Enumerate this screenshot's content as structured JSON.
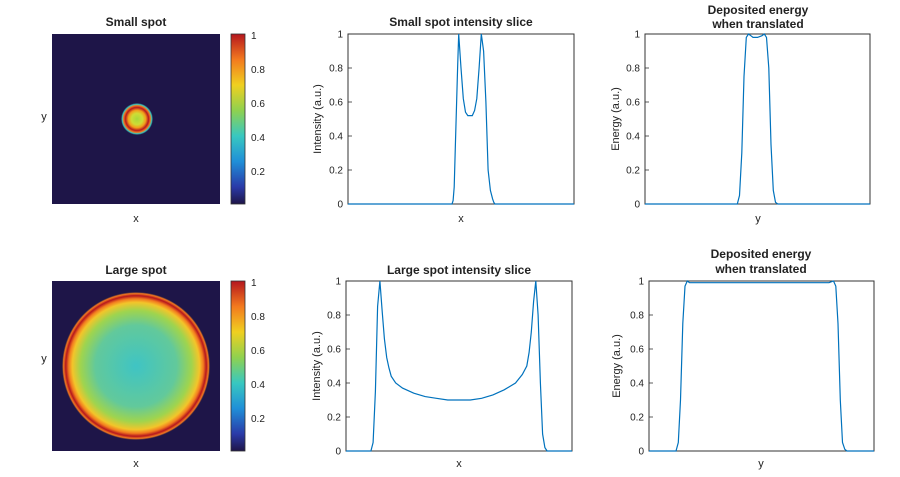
{
  "chart_data": [
    {
      "id": "small-spot-image",
      "type": "heatmap",
      "title": "Small spot",
      "xlabel": "x",
      "ylabel": "y",
      "spot_outer_radius": 0.1,
      "colorbar": {
        "ticks": [
          "0.2",
          "0.4",
          "0.6",
          "0.8",
          "1"
        ],
        "range": [
          0,
          1
        ],
        "colormap": "jet"
      },
      "background_color": "#1e1548"
    },
    {
      "id": "small-spot-slice",
      "type": "line",
      "title": "Small spot intensity slice",
      "xlabel": "x",
      "ylabel": "Intensity (a.u.)",
      "ylim": [
        0,
        1
      ],
      "yticks": [
        "0",
        "0.2",
        "0.4",
        "0.6",
        "0.8",
        "1"
      ],
      "xlim": [
        0,
        1
      ],
      "x": [
        0,
        0.46,
        0.465,
        0.47,
        0.475,
        0.485,
        0.49,
        0.5,
        0.51,
        0.52,
        0.53,
        0.54,
        0.55,
        0.56,
        0.57,
        0.58,
        0.59,
        0.6,
        0.61,
        0.615,
        0.62,
        0.63,
        0.64,
        0.645,
        0.65,
        0.66,
        1
      ],
      "y": [
        0,
        0,
        0.02,
        0.1,
        0.35,
        0.8,
        1.0,
        0.8,
        0.62,
        0.54,
        0.52,
        0.52,
        0.52,
        0.55,
        0.62,
        0.8,
        1.0,
        0.9,
        0.6,
        0.4,
        0.2,
        0.08,
        0.03,
        0.01,
        0,
        0,
        0
      ],
      "color": "#0072BD"
    },
    {
      "id": "small-spot-energy",
      "type": "line",
      "title": "Deposited energy",
      "subtitle": "when translated",
      "xlabel": "y",
      "ylabel": "Energy (a.u.)",
      "ylim": [
        0,
        1
      ],
      "yticks": [
        "0",
        "0.2",
        "0.4",
        "0.6",
        "0.8",
        "1"
      ],
      "xlim": [
        0,
        1
      ],
      "x": [
        0,
        0.41,
        0.42,
        0.43,
        0.44,
        0.45,
        0.46,
        0.47,
        0.48,
        0.5,
        0.52,
        0.53,
        0.54,
        0.55,
        0.56,
        0.57,
        0.58,
        0.59,
        1
      ],
      "y": [
        0,
        0,
        0.05,
        0.3,
        0.75,
        0.98,
        1.0,
        0.99,
        0.98,
        0.98,
        0.99,
        1.0,
        0.98,
        0.8,
        0.35,
        0.08,
        0.01,
        0,
        0
      ],
      "color": "#0072BD"
    },
    {
      "id": "large-spot-image",
      "type": "heatmap",
      "title": "Large spot",
      "xlabel": "x",
      "ylabel": "y",
      "spot_outer_radius": 0.44,
      "colorbar": {
        "ticks": [
          "0.2",
          "0.4",
          "0.6",
          "0.8",
          "1"
        ],
        "range": [
          0,
          1
        ],
        "colormap": "jet"
      },
      "background_color": "#1e1548"
    },
    {
      "id": "large-spot-slice",
      "type": "line",
      "title": "Large spot intensity slice",
      "xlabel": "x",
      "ylabel": "Intensity (a.u.)",
      "ylim": [
        0,
        1
      ],
      "yticks": [
        "0",
        "0.2",
        "0.4",
        "0.6",
        "0.8",
        "1"
      ],
      "xlim": [
        0,
        1
      ],
      "x": [
        0,
        0.11,
        0.12,
        0.13,
        0.14,
        0.15,
        0.16,
        0.17,
        0.18,
        0.19,
        0.2,
        0.22,
        0.25,
        0.3,
        0.35,
        0.4,
        0.45,
        0.5,
        0.55,
        0.6,
        0.65,
        0.7,
        0.75,
        0.78,
        0.8,
        0.81,
        0.82,
        0.83,
        0.84,
        0.85,
        0.86,
        0.87,
        0.88,
        0.89,
        1
      ],
      "y": [
        0,
        0,
        0.05,
        0.35,
        0.85,
        1.0,
        0.82,
        0.66,
        0.55,
        0.49,
        0.44,
        0.4,
        0.37,
        0.34,
        0.32,
        0.31,
        0.3,
        0.3,
        0.3,
        0.31,
        0.33,
        0.36,
        0.4,
        0.45,
        0.5,
        0.58,
        0.7,
        0.88,
        1.0,
        0.8,
        0.4,
        0.1,
        0.02,
        0,
        0
      ],
      "color": "#0072BD"
    },
    {
      "id": "large-spot-energy",
      "type": "line",
      "title": "Deposited energy",
      "subtitle": "when translated",
      "xlabel": "y",
      "ylabel": "Energy (a.u.)",
      "ylim": [
        0,
        1
      ],
      "yticks": [
        "0",
        "0.2",
        "0.4",
        "0.6",
        "0.8",
        "1"
      ],
      "xlim": [
        0,
        1
      ],
      "x": [
        0,
        0.12,
        0.13,
        0.14,
        0.15,
        0.16,
        0.17,
        0.18,
        0.2,
        0.3,
        0.4,
        0.5,
        0.6,
        0.7,
        0.8,
        0.82,
        0.83,
        0.84,
        0.85,
        0.86,
        0.87,
        0.88,
        1
      ],
      "y": [
        0,
        0,
        0.05,
        0.3,
        0.75,
        0.97,
        1.0,
        0.99,
        0.99,
        0.99,
        0.99,
        0.99,
        0.99,
        0.99,
        0.99,
        1.0,
        0.97,
        0.75,
        0.3,
        0.05,
        0.01,
        0,
        0
      ],
      "color": "#0072BD"
    }
  ]
}
